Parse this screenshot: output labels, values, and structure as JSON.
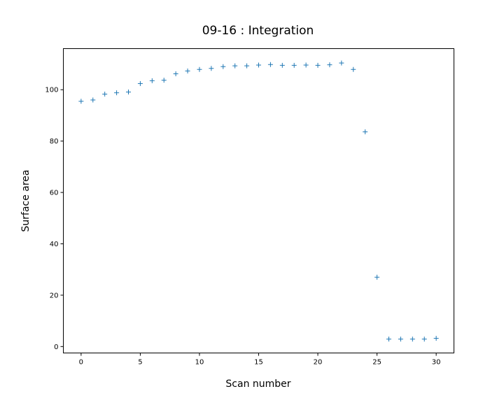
{
  "chart_data": {
    "type": "scatter",
    "title": "09-16 : Integration",
    "xlabel": "Scan number",
    "ylabel": "Surface area",
    "xlim": [
      -1.5,
      31.5
    ],
    "ylim": [
      -2.5,
      116
    ],
    "xticks": [
      0,
      5,
      10,
      15,
      20,
      25,
      30
    ],
    "yticks": [
      0,
      20,
      40,
      60,
      80,
      100
    ],
    "marker": "+",
    "color": "#1f77b4",
    "grid": false,
    "series": [
      {
        "x": [
          0,
          1,
          2,
          3,
          4,
          5,
          6,
          7,
          8,
          9,
          10,
          11,
          12,
          13,
          14,
          15,
          16,
          17,
          18,
          19,
          20,
          21,
          22,
          23,
          24,
          25,
          26,
          27,
          28,
          29,
          30
        ],
        "y": [
          95.5,
          96.0,
          98.3,
          98.8,
          99.1,
          102.4,
          103.5,
          103.7,
          106.2,
          107.3,
          107.9,
          108.3,
          109.0,
          109.3,
          109.3,
          109.6,
          109.8,
          109.5,
          109.5,
          109.6,
          109.5,
          109.7,
          110.4,
          107.9,
          83.6,
          27.0,
          2.9,
          2.9,
          2.9,
          2.9,
          3.2
        ]
      }
    ]
  }
}
